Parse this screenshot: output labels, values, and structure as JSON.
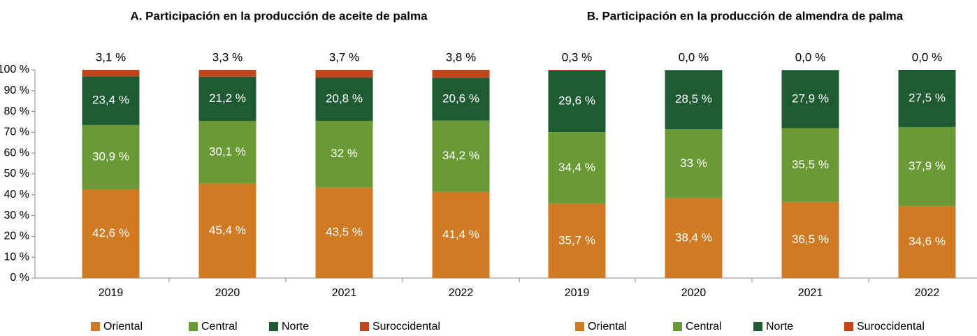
{
  "chart_data": [
    {
      "type": "stacked_bar",
      "title": "A. Participación en la producción de aceite de palma",
      "categories": [
        "2019",
        "2020",
        "2021",
        "2022"
      ],
      "ylim": [
        0,
        100
      ],
      "yticks": [
        {
          "value": 0,
          "label": "0 %"
        },
        {
          "value": 10,
          "label": "10 %"
        },
        {
          "value": 20,
          "label": "20 %"
        },
        {
          "value": 30,
          "label": "30 %"
        },
        {
          "value": 40,
          "label": "40 %"
        },
        {
          "value": 50,
          "label": "50 %"
        },
        {
          "value": 60,
          "label": "60 %"
        },
        {
          "value": 70,
          "label": "70 %"
        },
        {
          "value": 80,
          "label": "80 %"
        },
        {
          "value": 90,
          "label": "90 %"
        },
        {
          "value": 100,
          "label": "100 %"
        }
      ],
      "legend": "bottom",
      "series": [
        {
          "name": "Oriental",
          "color": "#d07a24",
          "values": [
            42.6,
            45.4,
            43.5,
            41.4
          ],
          "value_labels": [
            "42,6 %",
            "45,4 %",
            "43,5 %",
            "41,4 %"
          ]
        },
        {
          "name": "Central",
          "color": "#6a9a35",
          "values": [
            30.9,
            30.1,
            32,
            34.2
          ],
          "value_labels": [
            "30,9 %",
            "30,1 %",
            "32 %",
            "34,2 %"
          ]
        },
        {
          "name": "Norte",
          "color": "#1e5a32",
          "values": [
            23.4,
            21.2,
            20.8,
            20.6
          ],
          "value_labels": [
            "23,4 %",
            "21,2 %",
            "20,8 %",
            "20,6 %"
          ]
        },
        {
          "name": "Suroccidental",
          "color": "#c0461c",
          "values": [
            3.1,
            3.3,
            3.7,
            3.8
          ],
          "value_labels": [
            "3,1 %",
            "3,3 %",
            "3,7 %",
            "3,8 %"
          ]
        }
      ]
    },
    {
      "type": "stacked_bar",
      "title": "B. Participación en la producción de almendra de palma",
      "categories": [
        "2019",
        "2020",
        "2021",
        "2022"
      ],
      "ylim": [
        0,
        100
      ],
      "legend": "bottom",
      "series": [
        {
          "name": "Oriental",
          "color": "#d07a24",
          "values": [
            35.7,
            38.4,
            36.5,
            34.6
          ],
          "value_labels": [
            "35,7 %",
            "38,4 %",
            "36,5 %",
            "34,6 %"
          ]
        },
        {
          "name": "Central",
          "color": "#6a9a35",
          "values": [
            34.4,
            33,
            35.5,
            37.9
          ],
          "value_labels": [
            "34,4 %",
            "33 %",
            "35,5 %",
            "37,9 %"
          ]
        },
        {
          "name": "Norte",
          "color": "#1e5a32",
          "values": [
            29.6,
            28.5,
            27.9,
            27.5
          ],
          "value_labels": [
            "29,6 %",
            "28,5 %",
            "27,9 %",
            "27,5 %"
          ]
        },
        {
          "name": "Suroccidental",
          "color": "#c0461c",
          "values": [
            0.3,
            0,
            0,
            0
          ],
          "value_labels": [
            "0,3 %",
            "0,0 %",
            "0,0 %",
            "0,0 %"
          ]
        }
      ]
    }
  ]
}
